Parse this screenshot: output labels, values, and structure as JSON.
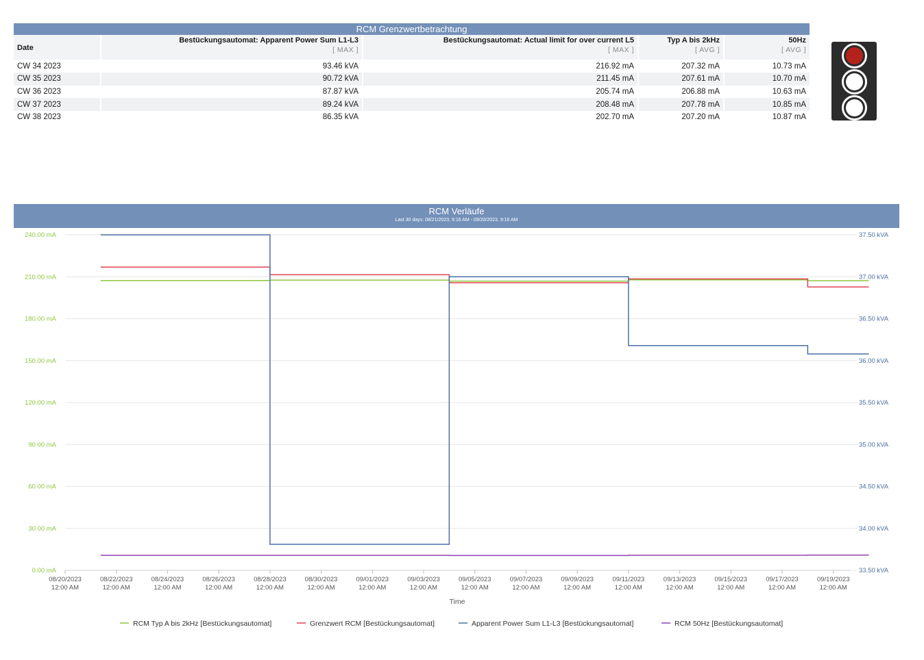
{
  "table": {
    "title": "RCM Grenzwertbetrachtung",
    "columns": [
      {
        "label": "Date",
        "agg": ""
      },
      {
        "label": "Bestückungsautomat: Apparent Power Sum L1-L3",
        "agg": "[ MAX ]"
      },
      {
        "label": "Bestückungsautomat: Actual limit for over current L5",
        "agg": "[ MAX ]"
      },
      {
        "label": "Typ A bis 2kHz",
        "agg": "[ AVG ]"
      },
      {
        "label": "50Hz",
        "agg": "[ AVG ]"
      }
    ],
    "rows": [
      [
        "CW 34 2023",
        "93.46 kVA",
        "216.92 mA",
        "207.32 mA",
        "10.73 mA"
      ],
      [
        "CW 35 2023",
        "90.72 kVA",
        "211.45 mA",
        "207.61 mA",
        "10.70 mA"
      ],
      [
        "CW 36 2023",
        "87.87 kVA",
        "205.74 mA",
        "206.88 mA",
        "10.63 mA"
      ],
      [
        "CW 37 2023",
        "89.24 kVA",
        "208.48 mA",
        "207.78 mA",
        "10.85 mA"
      ],
      [
        "CW 38 2023",
        "86.35 kVA",
        "202.70 mA",
        "207.20 mA",
        "10.87 mA"
      ]
    ]
  },
  "traffic_light": {
    "active": "red",
    "lamps": [
      {
        "state": "on",
        "color": "#b3231c"
      },
      {
        "state": "off",
        "color": "#ffffff"
      },
      {
        "state": "off",
        "color": "#ffffff"
      }
    ]
  },
  "chart_header": {
    "title": "RCM Verläufe",
    "subtitle": "Last 30 days: 08/21/2023, 9:16 AM - 09/20/2023, 9:16 AM"
  },
  "chart_data": {
    "type": "line",
    "step": true,
    "xlabel": "Time",
    "x_ticks": [
      [
        "08/20/2023",
        "12:00 AM"
      ],
      [
        "08/22/2023",
        "12:00 AM"
      ],
      [
        "08/24/2023",
        "12:00 AM"
      ],
      [
        "08/26/2023",
        "12:00 AM"
      ],
      [
        "08/28/2023",
        "12:00 AM"
      ],
      [
        "08/30/2023",
        "12:00 AM"
      ],
      [
        "09/01/2023",
        "12:00 AM"
      ],
      [
        "09/03/2023",
        "12:00 AM"
      ],
      [
        "09/05/2023",
        "12:00 AM"
      ],
      [
        "09/07/2023",
        "12:00 AM"
      ],
      [
        "09/09/2023",
        "12:00 AM"
      ],
      [
        "09/11/2023",
        "12:00 AM"
      ],
      [
        "09/13/2023",
        "12:00 AM"
      ],
      [
        "09/15/2023",
        "12:00 AM"
      ],
      [
        "09/17/2023",
        "12:00 AM"
      ],
      [
        "09/19/2023",
        "12:00 AM"
      ]
    ],
    "xlim": [
      "2023-08-20",
      "2023-09-20"
    ],
    "y_left": {
      "range": [
        0,
        240
      ],
      "ticks": [
        "0.00 mA",
        "30.00 mA",
        "60.00 mA",
        "90.00 mA",
        "120.00 mA",
        "150.00 mA",
        "180.00 mA",
        "210.00 mA",
        "240.00 mA"
      ],
      "color": "#8dc63f"
    },
    "y_right": {
      "range": [
        33.5,
        37.5
      ],
      "ticks": [
        "33.50 kVA",
        "34.00 kVA",
        "34.50 kVA",
        "35.00 kVA",
        "35.50 kVA",
        "36.00 kVA",
        "36.50 kVA",
        "37.00 kVA",
        "37.50 kVA"
      ],
      "color": "#4a6fa5"
    },
    "grid": true,
    "legend_position": "bottom",
    "series": [
      {
        "name": "RCM Typ A bis 2kHz [Bestückungsautomat]",
        "axis": "left",
        "color": "#8dc63f",
        "points": [
          [
            "2023-08-21T09:16",
            207.3
          ],
          [
            "2023-08-28",
            207.6
          ],
          [
            "2023-09-04",
            206.9
          ],
          [
            "2023-09-11",
            207.8
          ],
          [
            "2023-09-18",
            207.2
          ],
          [
            "2023-09-20T09:16",
            207.2
          ]
        ]
      },
      {
        "name": "Grenzwert RCM [Bestückungsautomat]",
        "axis": "left",
        "color": "#e0444f",
        "points": [
          [
            "2023-08-21T09:16",
            216.9
          ],
          [
            "2023-08-28",
            211.5
          ],
          [
            "2023-09-04",
            205.7
          ],
          [
            "2023-09-11",
            208.5
          ],
          [
            "2023-09-18",
            202.7
          ],
          [
            "2023-09-20T09:16",
            202.7
          ]
        ]
      },
      {
        "name": "Apparent Power Sum L1-L3 [Bestückungsautomat]",
        "axis": "right",
        "color": "#4a6fa5",
        "points": [
          [
            "2023-08-21T09:16",
            37.5
          ],
          [
            "2023-08-28",
            33.81
          ],
          [
            "2023-09-04",
            37.0
          ],
          [
            "2023-09-11",
            36.18
          ],
          [
            "2023-09-18",
            36.08
          ],
          [
            "2023-09-20T09:16",
            36.08
          ]
        ]
      },
      {
        "name": "RCM 50Hz [Bestückungsautomat]",
        "axis": "left",
        "color": "#8e44ad",
        "points": [
          [
            "2023-08-21T09:16",
            10.7
          ],
          [
            "2023-08-28",
            10.7
          ],
          [
            "2023-09-04",
            10.6
          ],
          [
            "2023-09-11",
            10.8
          ],
          [
            "2023-09-18",
            10.9
          ],
          [
            "2023-09-20T09:16",
            10.9
          ]
        ]
      }
    ]
  }
}
